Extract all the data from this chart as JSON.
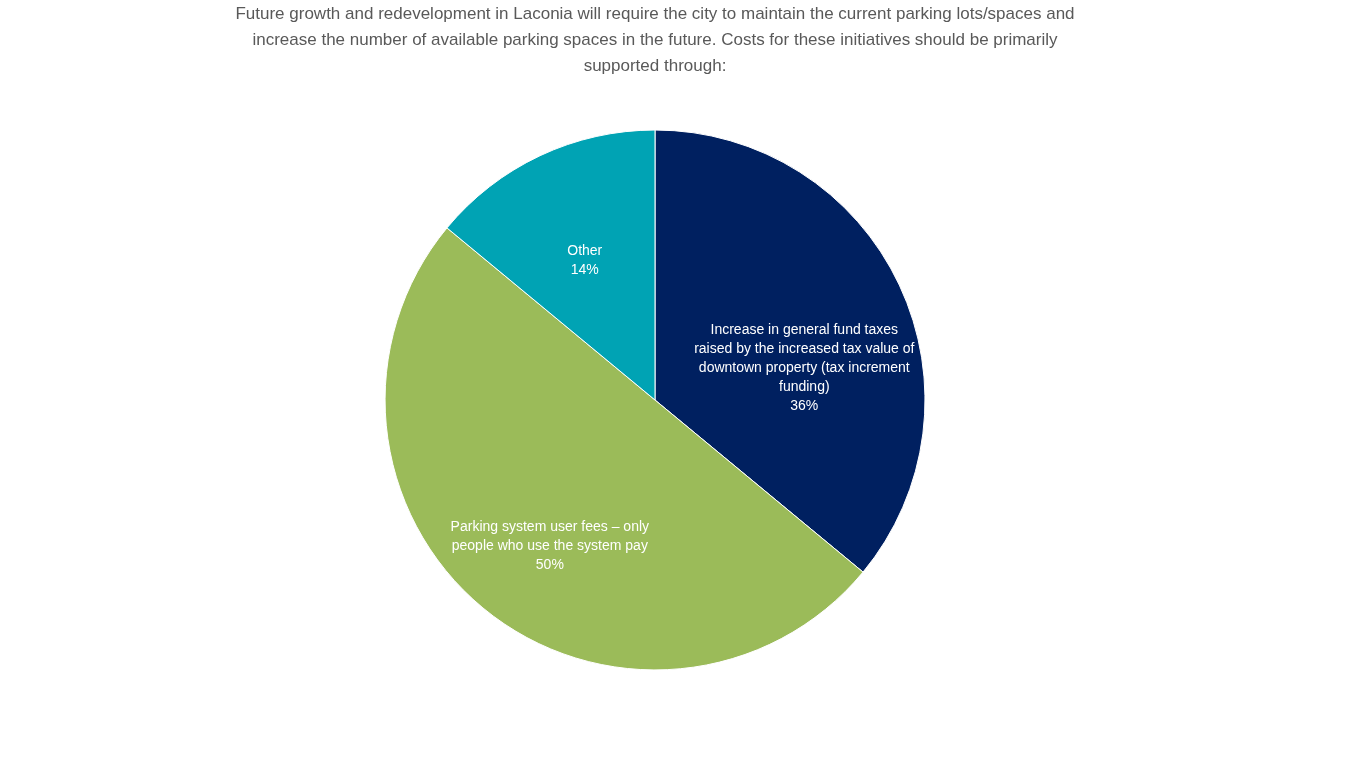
{
  "chart_data": {
    "type": "pie",
    "title": "Future growth and redevelopment in Laconia will require the city to maintain the current parking lots/spaces and increase the number of available parking spaces in the future.  Costs for these initiatives should be primarily supported through:",
    "categories": [
      "Increase in general fund taxes raised by the increased tax value of downtown property (tax increment funding)",
      "Parking system user fees – only people who use the system pay",
      "Other"
    ],
    "values": [
      36,
      50,
      14
    ],
    "colors": [
      "#002060",
      "#9bbb59",
      "#00a3b4"
    ],
    "value_labels": [
      "36%",
      "50%",
      "14%"
    ],
    "legend": false
  }
}
